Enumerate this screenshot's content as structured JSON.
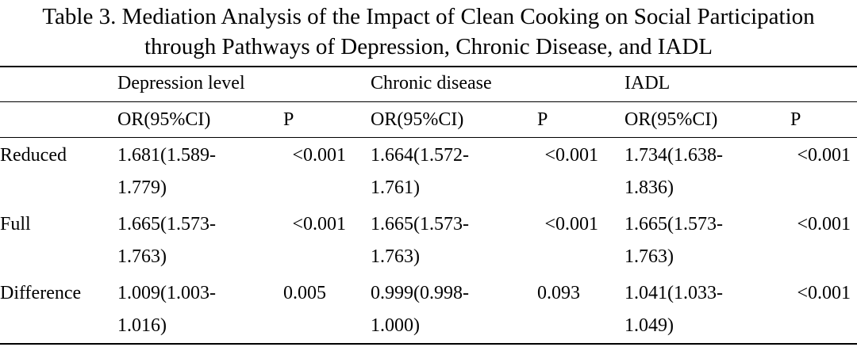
{
  "caption": {
    "line1": "Table 3. Mediation Analysis of the Impact of Clean Cooking on Social Participation",
    "line2": "through Pathways of Depression, Chronic Disease, and IADL"
  },
  "table": {
    "groups": [
      "Depression level",
      "Chronic disease",
      "IADL"
    ],
    "subheaders": [
      "OR(95%CI)",
      "P",
      "OR(95%CI)",
      "P",
      "OR(95%CI)",
      "P"
    ],
    "rows": [
      {
        "label": "Reduced",
        "cells": [
          {
            "or_line1": "1.681(1.589-",
            "or_line2": "1.779)",
            "p": "<0.001"
          },
          {
            "or_line1": "1.664(1.572-",
            "or_line2": "1.761)",
            "p": "<0.001"
          },
          {
            "or_line1": "1.734(1.638-",
            "or_line2": "1.836)",
            "p": "<0.001"
          }
        ]
      },
      {
        "label": "Full",
        "cells": [
          {
            "or_line1": "1.665(1.573-",
            "or_line2": "1.763)",
            "p": "<0.001"
          },
          {
            "or_line1": "1.665(1.573-",
            "or_line2": "1.763)",
            "p": "<0.001"
          },
          {
            "or_line1": "1.665(1.573-",
            "or_line2": "1.763)",
            "p": "<0.001"
          }
        ]
      },
      {
        "label": "Difference",
        "cells": [
          {
            "or_line1": "1.009(1.003-",
            "or_line2": "1.016)",
            "p": "0.005"
          },
          {
            "or_line1": "0.999(0.998-",
            "or_line2": "1.000)",
            "p": "0.093"
          },
          {
            "or_line1": "1.041(1.033-",
            "or_line2": "1.049)",
            "p": "<0.001"
          }
        ]
      }
    ]
  }
}
